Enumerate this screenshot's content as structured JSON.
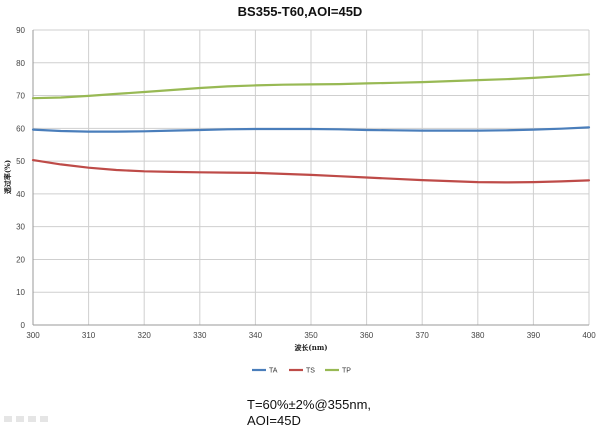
{
  "chart_data": {
    "type": "line",
    "title": "BS355-T60,AOI=45D",
    "xlabel": "波长(nm)",
    "ylabel": "透过率(%)",
    "xlim": [
      300,
      400
    ],
    "ylim": [
      0,
      90
    ],
    "xticks": [
      300,
      310,
      320,
      330,
      340,
      350,
      360,
      370,
      380,
      390,
      400
    ],
    "yticks": [
      0,
      10,
      20,
      30,
      40,
      50,
      60,
      70,
      80,
      90
    ],
    "grid": true,
    "legend_position": "bottom",
    "x": [
      300,
      305,
      310,
      315,
      320,
      325,
      330,
      335,
      340,
      345,
      350,
      355,
      360,
      365,
      370,
      375,
      380,
      385,
      390,
      395,
      400
    ],
    "series": [
      {
        "name": "TA",
        "color": "#4a7ebb",
        "values": [
          59.6,
          59.2,
          59.0,
          59.0,
          59.1,
          59.3,
          59.5,
          59.7,
          59.8,
          59.8,
          59.8,
          59.7,
          59.5,
          59.4,
          59.3,
          59.3,
          59.3,
          59.4,
          59.6,
          59.9,
          60.3
        ]
      },
      {
        "name": "TS",
        "color": "#be4b48",
        "values": [
          50.3,
          49.0,
          48.0,
          47.3,
          46.9,
          46.7,
          46.6,
          46.5,
          46.4,
          46.1,
          45.8,
          45.4,
          45.0,
          44.6,
          44.2,
          43.9,
          43.6,
          43.5,
          43.6,
          43.8,
          44.1
        ]
      },
      {
        "name": "TP",
        "color": "#98b954",
        "values": [
          69.2,
          69.4,
          69.9,
          70.5,
          71.1,
          71.7,
          72.3,
          72.8,
          73.1,
          73.3,
          73.4,
          73.5,
          73.7,
          73.9,
          74.1,
          74.4,
          74.7,
          75.0,
          75.4,
          75.9,
          76.5
        ]
      }
    ]
  },
  "note": {
    "line1": "T=60%±2%@355nm,",
    "line2": "AOI=45D"
  }
}
